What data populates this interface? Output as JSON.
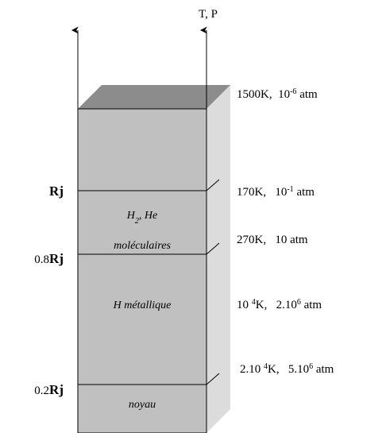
{
  "axis_label": "T, P",
  "left_labels": [
    {
      "parts": [
        {
          "text": "Rj",
          "bold": true
        }
      ]
    },
    {
      "parts": [
        {
          "text": "0.8"
        },
        {
          "text": "Rj",
          "bold": true
        }
      ]
    },
    {
      "parts": [
        {
          "text": "0.2"
        },
        {
          "text": "Rj",
          "bold": true
        }
      ]
    }
  ],
  "layers": [
    {
      "lines": [
        {
          "parts": [
            {
              "text": "H"
            },
            {
              "text": "2",
              "sub": true
            },
            {
              "text": ", He"
            }
          ]
        },
        {
          "parts": [
            {
              "text": "moléculaires"
            }
          ]
        }
      ]
    },
    {
      "lines": [
        {
          "parts": [
            {
              "text": "H métallique"
            }
          ]
        }
      ]
    },
    {
      "lines": [
        {
          "parts": [
            {
              "text": "noyau"
            }
          ]
        }
      ]
    }
  ],
  "right_labels": [
    {
      "parts": [
        {
          "text": "1500K,  10"
        },
        {
          "text": "-6",
          "sup": true
        },
        {
          "text": " atm"
        }
      ]
    },
    {
      "parts": [
        {
          "text": "170K,   10"
        },
        {
          "text": "-1",
          "sup": true
        },
        {
          "text": " atm"
        }
      ]
    },
    {
      "parts": [
        {
          "text": "270K,   10 atm"
        }
      ]
    },
    {
      "parts": [
        {
          "text": "10 "
        },
        {
          "text": "4",
          "sup": true
        },
        {
          "text": "K,   2.10"
        },
        {
          "text": "6",
          "sup": true
        },
        {
          "text": " atm"
        }
      ]
    },
    {
      "parts": [
        {
          "text": "2.10 "
        },
        {
          "text": "4",
          "sup": true
        },
        {
          "text": "K,   5.10"
        },
        {
          "text": "6",
          "sup": true
        },
        {
          "text": " atm"
        }
      ]
    }
  ]
}
